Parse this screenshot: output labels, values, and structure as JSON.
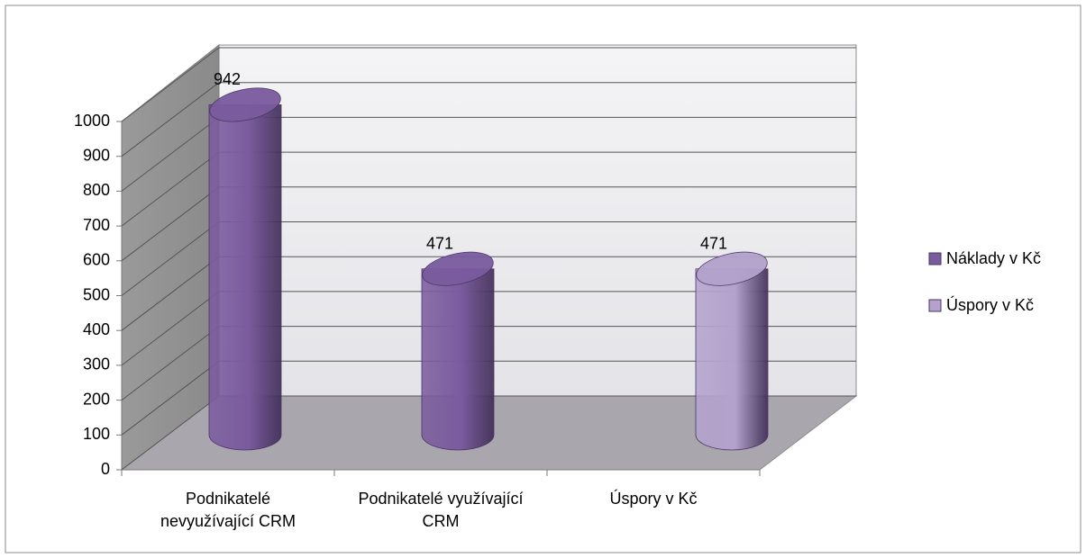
{
  "chart_data": {
    "type": "bar3d-cylinder",
    "categories": [
      "Podnikatelé nevyužívající CRM",
      "Podnikatelé využívající CRM",
      "Úspory v Kč"
    ],
    "series": [
      {
        "name": "Náklady v Kč",
        "color": "#7a5b9e",
        "values": [
          942,
          471,
          null
        ]
      },
      {
        "name": "Úspory v Kč",
        "color": "#b3a2cc",
        "values": [
          null,
          null,
          471
        ]
      }
    ],
    "ylim": [
      0,
      1000
    ],
    "yticks": [
      0,
      100,
      200,
      300,
      400,
      500,
      600,
      700,
      800,
      900,
      1000
    ],
    "grid": true,
    "legend": "right"
  }
}
